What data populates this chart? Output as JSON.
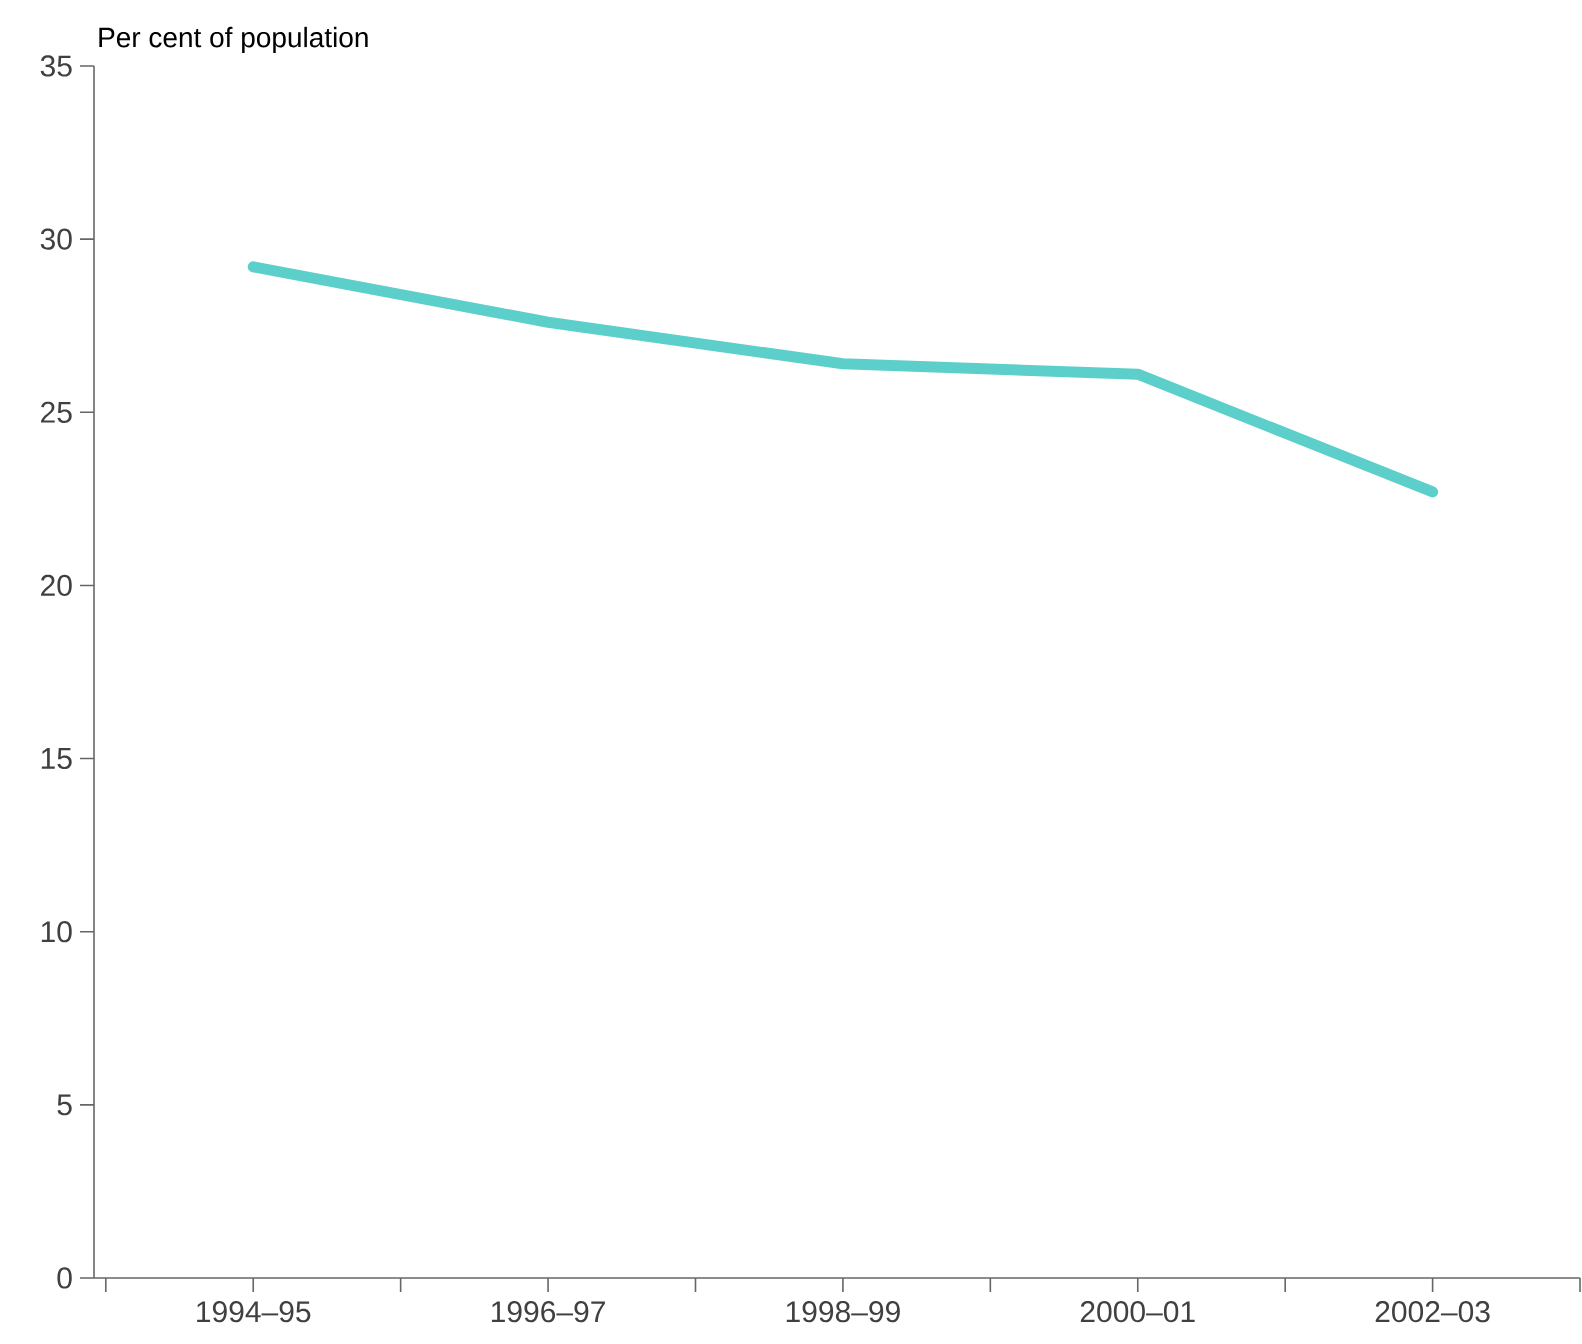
{
  "chart_data": {
    "type": "line",
    "ylabel": "Per cent of population",
    "categories": [
      "1994–95",
      "1996–97",
      "1998–99",
      "2000–01",
      "2002–03"
    ],
    "series": [
      {
        "color": "#5ccfcb",
        "values": [
          29.2,
          27.6,
          26.4,
          26.1,
          22.7
        ]
      }
    ],
    "ylim": [
      0,
      35
    ],
    "yticks": [
      0,
      5,
      10,
      15,
      20,
      25,
      30,
      35
    ],
    "grid": false,
    "marker": "none",
    "line_style": "solid"
  }
}
